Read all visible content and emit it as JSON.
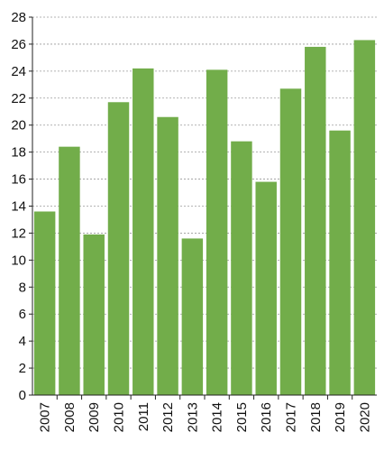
{
  "chart_data": {
    "type": "bar",
    "title": "",
    "xlabel": "",
    "ylabel": "",
    "categories": [
      "2007",
      "2008",
      "2009",
      "2010",
      "2011",
      "2012",
      "2013",
      "2014",
      "2015",
      "2016",
      "2017",
      "2018",
      "2019",
      "2020"
    ],
    "values": [
      13.6,
      18.4,
      11.9,
      21.7,
      24.2,
      20.6,
      11.6,
      24.1,
      18.8,
      15.8,
      22.7,
      25.8,
      19.6,
      26.3
    ],
    "ylim": [
      0,
      28
    ],
    "yticks": [
      "0",
      "2",
      "4",
      "6",
      "8",
      "10",
      "12",
      "14",
      "16",
      "18",
      "20",
      "22",
      "24",
      "26",
      "28"
    ],
    "grid": "horizontal dashed",
    "legend": "none",
    "colors": {
      "bar": "#72ad4a",
      "grid": "#9a9a9a",
      "axis": "#222222",
      "text": "#111111"
    }
  }
}
